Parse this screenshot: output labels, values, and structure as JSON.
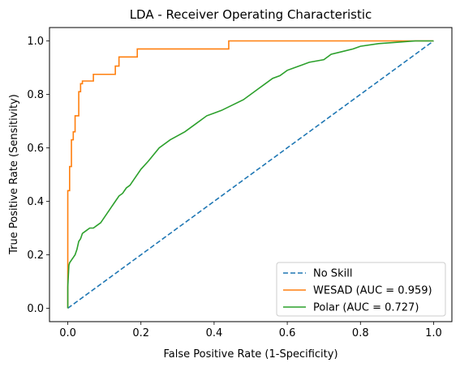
{
  "chart_data": {
    "type": "line",
    "title": "LDA - Receiver Operating Characteristic",
    "xlabel": "False Positive Rate (1-Specificity)",
    "ylabel": "True Positive Rate (Sensitivity)",
    "xlim": [
      -0.05,
      1.05
    ],
    "ylim": [
      -0.05,
      1.05
    ],
    "xticks": [
      0.0,
      0.2,
      0.4,
      0.6,
      0.8,
      1.0
    ],
    "yticks": [
      0.0,
      0.2,
      0.4,
      0.6,
      0.8,
      1.0
    ],
    "xtick_labels": [
      "0.0",
      "0.2",
      "0.4",
      "0.6",
      "0.8",
      "1.0"
    ],
    "ytick_labels": [
      "0.0",
      "0.2",
      "0.4",
      "0.6",
      "0.8",
      "1.0"
    ],
    "grid": false,
    "legend_position": "lower-right",
    "series": [
      {
        "name": "No Skill",
        "color": "#1f77b4",
        "dash": "dashed",
        "x": [
          0,
          1
        ],
        "y": [
          0,
          1
        ]
      },
      {
        "name": "WESAD (AUC = 0.959)",
        "color": "#ff7f0e",
        "dash": "solid",
        "x": [
          0,
          0,
          0.005,
          0.005,
          0.01,
          0.01,
          0.015,
          0.015,
          0.02,
          0.02,
          0.03,
          0.03,
          0.035,
          0.035,
          0.04,
          0.04,
          0.05,
          0.05,
          0.07,
          0.07,
          0.13,
          0.13,
          0.14,
          0.14,
          0.18,
          0.18,
          0.19,
          0.19,
          0.44,
          0.44,
          0.95,
          1.0
        ],
        "y": [
          0,
          0.44,
          0.44,
          0.53,
          0.53,
          0.63,
          0.63,
          0.66,
          0.66,
          0.72,
          0.72,
          0.81,
          0.81,
          0.84,
          0.84,
          0.85,
          0.85,
          0.85,
          0.85,
          0.875,
          0.875,
          0.906,
          0.906,
          0.94,
          0.94,
          0.94,
          0.94,
          0.97,
          0.97,
          1.0,
          1.0,
          1.0
        ]
      },
      {
        "name": "Polar (AUC = 0.727)",
        "color": "#2ca02c",
        "dash": "solid",
        "x": [
          0,
          0,
          0.003,
          0.005,
          0.01,
          0.015,
          0.02,
          0.025,
          0.03,
          0.035,
          0.04,
          0.05,
          0.06,
          0.07,
          0.08,
          0.09,
          0.1,
          0.11,
          0.12,
          0.13,
          0.14,
          0.15,
          0.16,
          0.17,
          0.18,
          0.2,
          0.22,
          0.25,
          0.28,
          0.32,
          0.35,
          0.38,
          0.4,
          0.42,
          0.45,
          0.48,
          0.5,
          0.52,
          0.54,
          0.56,
          0.58,
          0.6,
          0.62,
          0.64,
          0.66,
          0.7,
          0.72,
          0.75,
          0.78,
          0.8,
          0.85,
          0.9,
          0.95,
          1.0
        ],
        "y": [
          0,
          0.08,
          0.16,
          0.17,
          0.18,
          0.19,
          0.2,
          0.22,
          0.25,
          0.26,
          0.28,
          0.29,
          0.3,
          0.3,
          0.31,
          0.32,
          0.34,
          0.36,
          0.38,
          0.4,
          0.42,
          0.43,
          0.45,
          0.46,
          0.48,
          0.52,
          0.55,
          0.6,
          0.63,
          0.66,
          0.69,
          0.72,
          0.73,
          0.74,
          0.76,
          0.78,
          0.8,
          0.82,
          0.84,
          0.86,
          0.87,
          0.89,
          0.9,
          0.91,
          0.92,
          0.93,
          0.95,
          0.96,
          0.97,
          0.98,
          0.99,
          0.995,
          1.0,
          1.0
        ]
      }
    ]
  }
}
